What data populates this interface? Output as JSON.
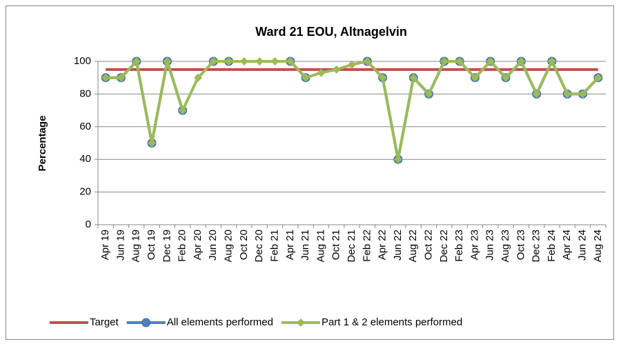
{
  "chart_data": {
    "type": "line",
    "title": "Ward 21 EOU, Altnagelvin",
    "y_label": "Percentage",
    "categories": [
      "Apr 19",
      "Jun 19",
      "Aug 19",
      "Oct 19",
      "Dec 19",
      "Feb 20",
      "Apr 20",
      "Jun 20",
      "Aug 20",
      "Oct 20",
      "Dec 20",
      "Feb 21",
      "Apr 21",
      "Jun 21",
      "Aug 21",
      "Oct 21",
      "Dec 21",
      "Feb 22",
      "Apr 22",
      "Jun 22",
      "Aug 22",
      "Oct 22",
      "Dec 22",
      "Feb 23",
      "Apr 23",
      "Jun 23",
      "Aug 23",
      "Oct 23",
      "Dec 23",
      "Feb 24",
      "Apr 24",
      "Jun 24",
      "Aug 24"
    ],
    "series": [
      {
        "name": "Target",
        "color": "#c0504d",
        "marker": "none",
        "values": [
          95,
          95,
          95,
          95,
          95,
          95,
          95,
          95,
          95,
          95,
          95,
          95,
          95,
          95,
          95,
          95,
          95,
          95,
          95,
          95,
          95,
          95,
          95,
          95,
          95,
          95,
          95,
          95,
          95,
          95,
          95,
          95,
          95
        ]
      },
      {
        "name": "All elements performed",
        "color": "#4f81bd",
        "marker": "circle",
        "values": [
          90,
          90,
          100,
          50,
          100,
          70,
          null,
          100,
          100,
          null,
          null,
          null,
          100,
          90,
          null,
          null,
          null,
          100,
          90,
          40,
          90,
          80,
          100,
          100,
          90,
          100,
          90,
          100,
          80,
          100,
          80,
          80,
          90
        ]
      },
      {
        "name": "Part 1 & 2 elements performed",
        "color": "#9bbb59",
        "marker": "diamond",
        "values": [
          90,
          90,
          100,
          50,
          100,
          70,
          90,
          100,
          100,
          100,
          100,
          100,
          100,
          90,
          93,
          95,
          98,
          100,
          90,
          40,
          90,
          80,
          100,
          100,
          90,
          100,
          90,
          100,
          80,
          100,
          80,
          80,
          90
        ]
      }
    ],
    "ylim": [
      0,
      100
    ],
    "yticks": [
      0,
      20,
      40,
      60,
      80,
      100
    ],
    "grid": true,
    "legend": "bottom"
  }
}
